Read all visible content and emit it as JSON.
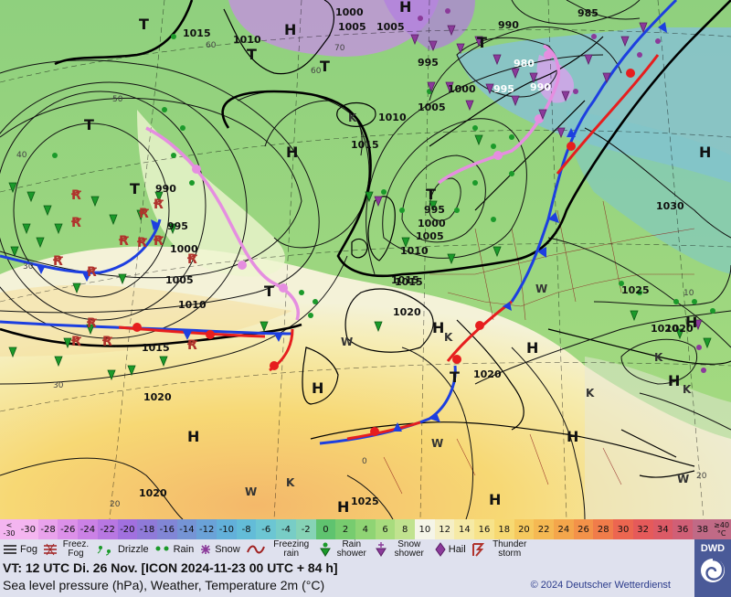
{
  "map": {
    "isobar_labels": [
      "1015",
      "1010",
      "1000",
      "1005",
      "1005",
      "990",
      "985",
      "980",
      "995",
      "1000",
      "990",
      "995",
      "1010",
      "1005",
      "1015",
      "990",
      "995",
      "1000",
      "1005",
      "1010",
      "1015",
      "995",
      "1000",
      "1005",
      "1010",
      "1015",
      "1020",
      "1020",
      "1030",
      "1025",
      "1020",
      "1020",
      "1020",
      "1025",
      "1020",
      "1015"
    ],
    "pressure_centers": [
      "T",
      "T",
      "T",
      "T",
      "T",
      "H",
      "H",
      "H",
      "H",
      "T",
      "T",
      "T",
      "H",
      "T",
      "H",
      "H",
      "H",
      "H",
      "H",
      "H",
      "H",
      "H"
    ],
    "temperature_labels": [
      "60",
      "50",
      "40",
      "30",
      "20",
      "70",
      "60",
      "30",
      "0",
      "10",
      "20"
    ],
    "weather_labels": [
      "K",
      "K",
      "W",
      "W",
      "W",
      "K",
      "K",
      "K",
      "W",
      "K",
      "W"
    ]
  },
  "scale": {
    "cells": [
      {
        "label": "-30",
        "color": "#f4b5f0"
      },
      {
        "label": "-28",
        "color": "#e9a2ec"
      },
      {
        "label": "-26",
        "color": "#dc90e9"
      },
      {
        "label": "-24",
        "color": "#cb81e6"
      },
      {
        "label": "-22",
        "color": "#b877e2"
      },
      {
        "label": "-20",
        "color": "#a170df"
      },
      {
        "label": "-18",
        "color": "#8f7ad9"
      },
      {
        "label": "-16",
        "color": "#8186d6"
      },
      {
        "label": "-14",
        "color": "#7594d5"
      },
      {
        "label": "-12",
        "color": "#6aa2d8"
      },
      {
        "label": "-10",
        "color": "#62b0da"
      },
      {
        "label": "-8",
        "color": "#63bcd8"
      },
      {
        "label": "-6",
        "color": "#6cc6d3"
      },
      {
        "label": "-4",
        "color": "#78cdc6"
      },
      {
        "label": "-2",
        "color": "#86d3b6"
      },
      {
        "label": "0",
        "color": "#5fc36f"
      },
      {
        "label": "2",
        "color": "#77cc6f"
      },
      {
        "label": "4",
        "color": "#8fd474"
      },
      {
        "label": "6",
        "color": "#a8dc7e"
      },
      {
        "label": "8",
        "color": "#c1e38f"
      },
      {
        "label": "10",
        "color": "#f5f5e8"
      },
      {
        "label": "12",
        "color": "#f5efc6"
      },
      {
        "label": "14",
        "color": "#f6eaa6"
      },
      {
        "label": "16",
        "color": "#f7e38b"
      },
      {
        "label": "18",
        "color": "#f7d972"
      },
      {
        "label": "20",
        "color": "#f6c95e"
      },
      {
        "label": "22",
        "color": "#f5b953"
      },
      {
        "label": "24",
        "color": "#f4a64b"
      },
      {
        "label": "26",
        "color": "#f39249"
      },
      {
        "label": "28",
        "color": "#f07c4a"
      },
      {
        "label": "30",
        "color": "#ec6650"
      },
      {
        "label": "32",
        "color": "#e55a5a"
      },
      {
        "label": "34",
        "color": "#dc5a66"
      },
      {
        "label": "36",
        "color": "#d05f76"
      },
      {
        "label": "38",
        "color": "#c06a86"
      }
    ],
    "low_end": {
      "top": "<",
      "bottom": "-30"
    },
    "high_end": {
      "top": "≥40",
      "bottom": "°C"
    }
  },
  "legend": {
    "items": [
      "Fog",
      "Freez. Fog",
      "Drizzle",
      "Rain",
      "Snow",
      "Freezing rain",
      "Rain shower",
      "Snow shower",
      "Hail",
      "Thunder storm"
    ],
    "logo": "DWD"
  },
  "info": {
    "valid_time": "VT: 12 UTC Di.  26 Nov. [ICON 2024-11-23  00 UTC + 84 h]",
    "subtitle": "Sea level pressure (hPa), Weather, Temperature 2m (°C)",
    "copyright": "© 2024 Deutscher Wetterdienst"
  },
  "colors": {
    "cold_front": "#1d3fe0",
    "warm_front": "#e61e1e",
    "occlusion": "#e58ee0",
    "isobar": "#111111",
    "land_outline": "#000000",
    "border": "#8b1a1a",
    "rain_symbol": "#1b9a2a"
  }
}
